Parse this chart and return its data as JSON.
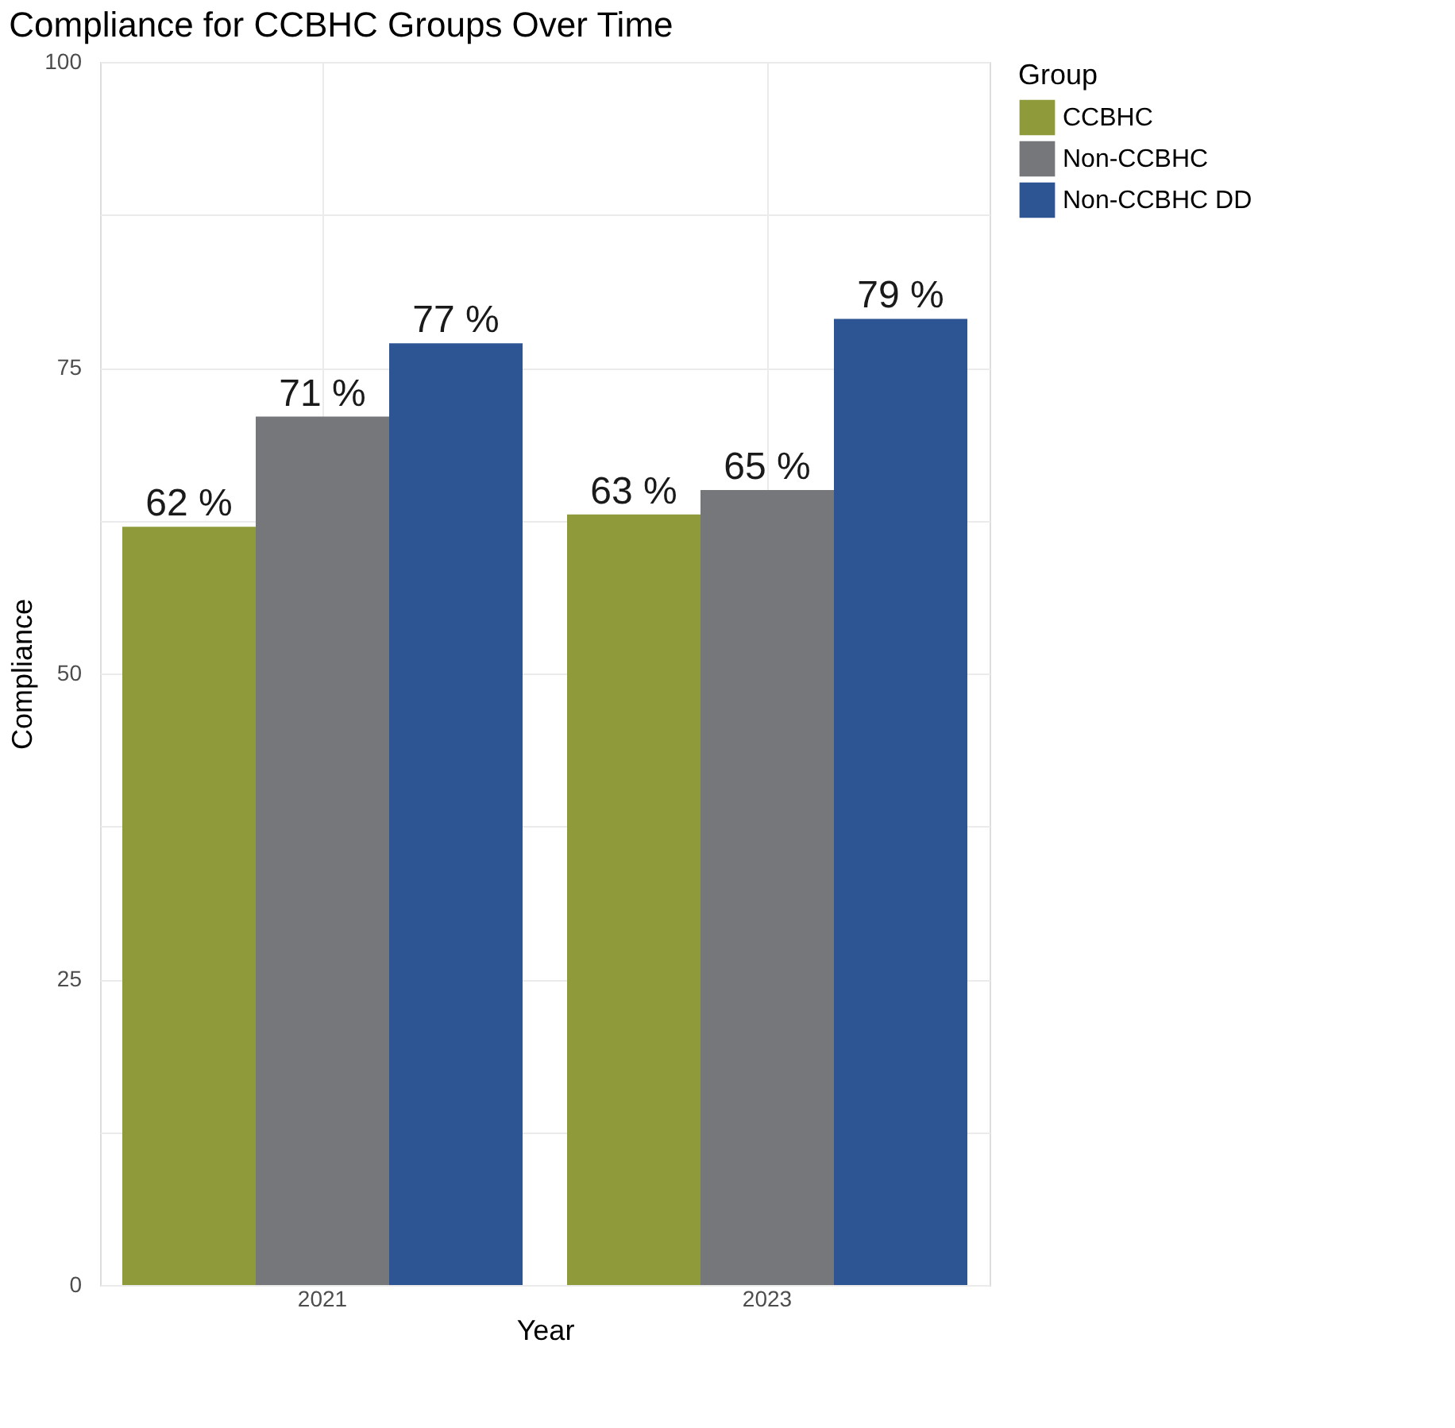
{
  "chart_data": {
    "type": "bar",
    "title": "Compliance for CCBHC Groups Over Time",
    "xlabel": "Year",
    "ylabel": "Compliance",
    "legend_title": "Group",
    "categories": [
      "2021",
      "2023"
    ],
    "series": [
      {
        "name": "CCBHC",
        "color": "#8f9b3a",
        "values": [
          62,
          63
        ],
        "value_labels": [
          "62 %",
          "63 %"
        ]
      },
      {
        "name": "Non-CCBHC",
        "color": "#76777b",
        "values": [
          71,
          65
        ],
        "value_labels": [
          "71 %",
          "65 %"
        ]
      },
      {
        "name": "Non-CCBHC DD",
        "color": "#2e5593",
        "values": [
          77,
          79
        ],
        "value_labels": [
          "77 %",
          "79 %"
        ]
      }
    ],
    "ylim": [
      0,
      100
    ],
    "yticks": [
      0,
      {
        "value": 12.5,
        "label": null
      },
      25,
      {
        "value": 37.5,
        "label": null
      },
      50,
      {
        "value": 62.5,
        "label": null
      },
      75,
      {
        "value": 87.5,
        "label": null
      },
      100
    ],
    "grid": true,
    "legend": "right"
  }
}
